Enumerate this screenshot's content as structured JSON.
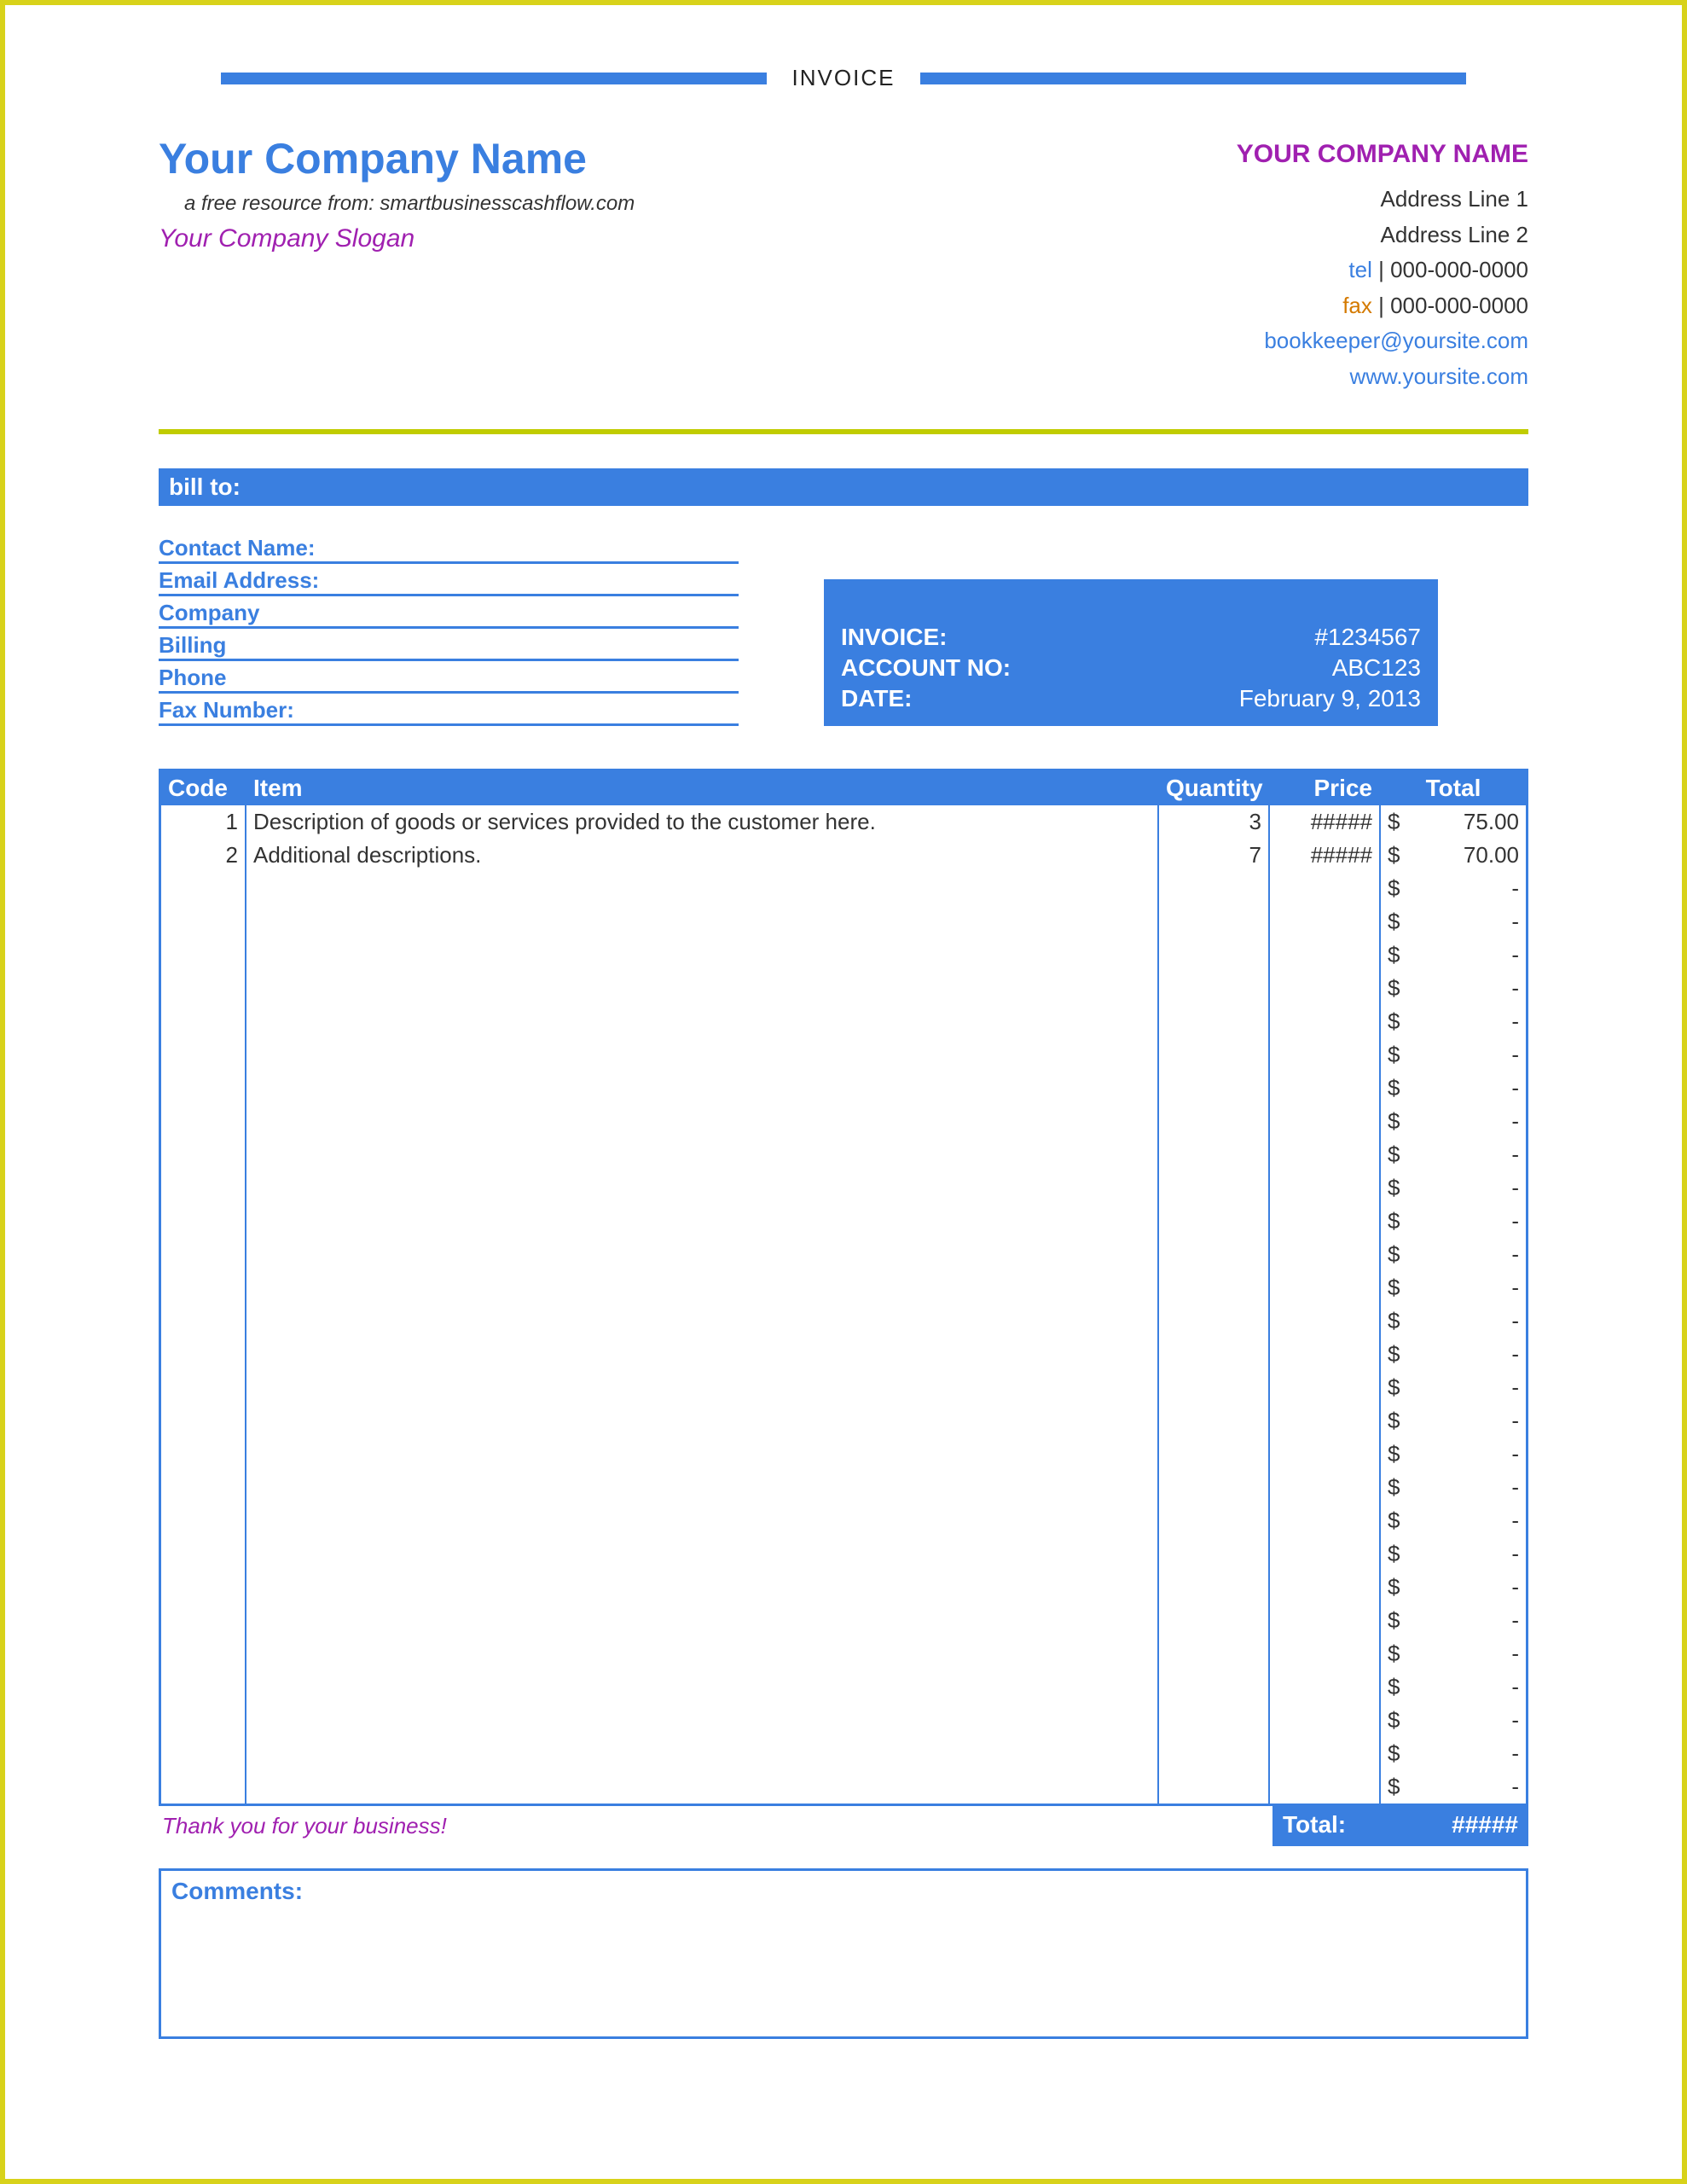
{
  "colors": {
    "primary_blue": "#3a7fe0",
    "accent_purple": "#a020b0",
    "accent_orange": "#d47a00",
    "divider_green": "#c0cc00",
    "border_yellow": "#d8d21a",
    "white": "#ffffff",
    "text_dark": "#333333"
  },
  "header": {
    "title": "INVOICE",
    "company_name": "Your Company Name",
    "resource_line": "a free resource from: smartbusinesscashflow.com",
    "slogan": "Your Company Slogan"
  },
  "company_right": {
    "name": "YOUR COMPANY NAME",
    "address1": "Address Line 1",
    "address2": "Address Line 2",
    "tel_label": "tel",
    "tel": "000-000-0000",
    "fax_label": "fax",
    "fax": "000-000-0000",
    "email": "bookkeeper@yoursite.com",
    "website": "www.yoursite.com"
  },
  "bill_to": {
    "bar_label": "bill to:",
    "fields": [
      "Contact Name:",
      "Email Address:",
      "Company",
      "Billing",
      "Phone",
      "Fax Number:"
    ]
  },
  "invoice_info": {
    "invoice_label": "INVOICE:",
    "invoice_value": "#1234567",
    "account_label": "ACCOUNT NO:",
    "account_value": "ABC123",
    "date_label": "DATE:",
    "date_value": "February 9, 2013"
  },
  "table": {
    "headers": {
      "code": "Code",
      "item": "Item",
      "quantity": "Quantity",
      "price": "Price",
      "total": "Total"
    },
    "currency": "$",
    "dash": "-",
    "rows": [
      {
        "code": "1",
        "item": "Description of goods or services provided to the customer here.",
        "qty": "3",
        "price": "#####",
        "total": "75.00"
      },
      {
        "code": "2",
        "item": "Additional descriptions.",
        "qty": "7",
        "price": "#####",
        "total": "70.00"
      }
    ],
    "empty_row_count": 28
  },
  "footer": {
    "thank_you": "Thank you for your business!",
    "total_label": "Total:",
    "total_value": "#####"
  },
  "comments": {
    "label": "Comments:"
  }
}
